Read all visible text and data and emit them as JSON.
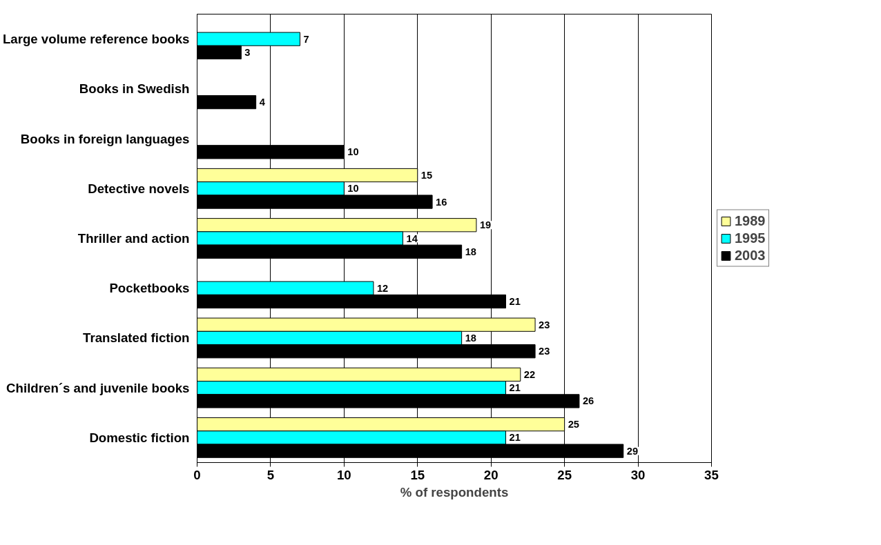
{
  "chart_data": {
    "type": "bar",
    "orientation": "horizontal",
    "xlabel": "% of respondents",
    "categories": [
      "Large volume reference books",
      "Books in Swedish",
      "Books in foreign languages",
      "Detective novels",
      "Thriller and action",
      "Pocketbooks",
      "Translated fiction",
      "Children´s and juvenile books",
      "Domestic fiction"
    ],
    "series": [
      {
        "name": "1989",
        "color": "#ffff99",
        "values": [
          null,
          null,
          null,
          15,
          19,
          null,
          23,
          22,
          25
        ]
      },
      {
        "name": "1995",
        "color": "#00ffff",
        "values": [
          7,
          null,
          null,
          10,
          14,
          12,
          18,
          21,
          21
        ]
      },
      {
        "name": "2003",
        "color": "#000000",
        "values": [
          3,
          4,
          10,
          16,
          18,
          21,
          23,
          26,
          29
        ]
      }
    ],
    "xlim": [
      0,
      35
    ],
    "xticks": [
      0,
      5,
      10,
      15,
      20,
      25,
      30,
      35
    ],
    "grid": "x",
    "legend": "right",
    "data_labels": true
  }
}
